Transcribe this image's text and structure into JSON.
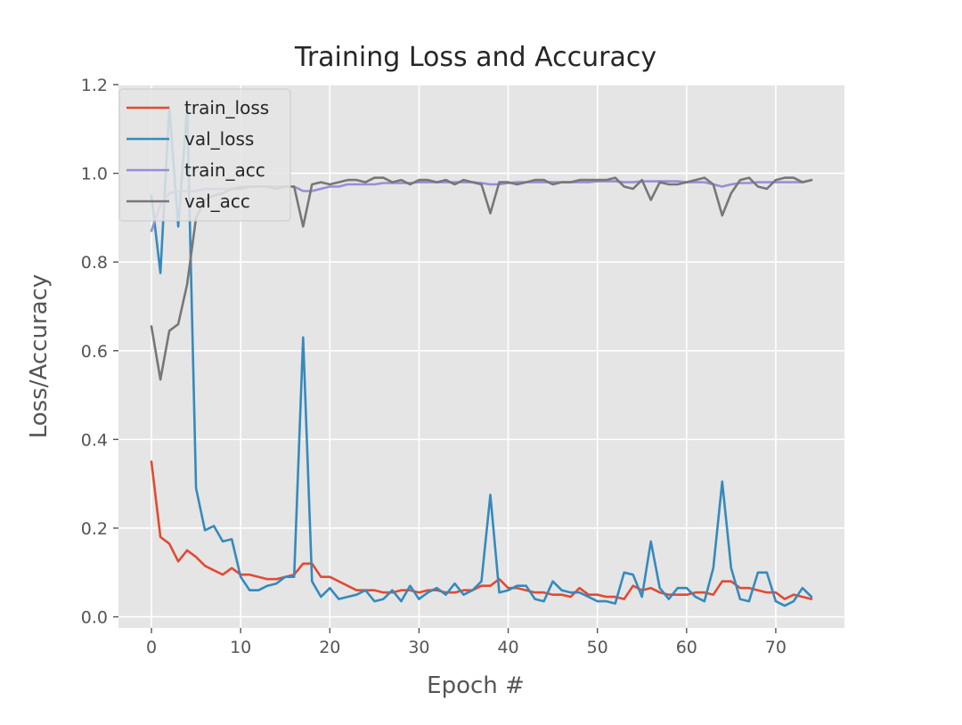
{
  "chart_data": {
    "type": "line",
    "title": "Training Loss and Accuracy",
    "xlabel": "Epoch #",
    "ylabel": "Loss/Accuracy",
    "xlim": [
      -3.7,
      77.7
    ],
    "ylim": [
      -0.025,
      1.2
    ],
    "xticks": [
      "0",
      "10",
      "20",
      "30",
      "40",
      "50",
      "60",
      "70"
    ],
    "yticks": [
      "0.0",
      "0.2",
      "0.4",
      "0.6",
      "0.8",
      "1.0",
      "1.2"
    ],
    "grid": true,
    "legend_position": "top-left",
    "x": [
      0,
      1,
      2,
      3,
      4,
      5,
      6,
      7,
      8,
      9,
      10,
      11,
      12,
      13,
      14,
      15,
      16,
      17,
      18,
      19,
      20,
      21,
      22,
      23,
      24,
      25,
      26,
      27,
      28,
      29,
      30,
      31,
      32,
      33,
      34,
      35,
      36,
      37,
      38,
      39,
      40,
      41,
      42,
      43,
      44,
      45,
      46,
      47,
      48,
      49,
      50,
      51,
      52,
      53,
      54,
      55,
      56,
      57,
      58,
      59,
      60,
      61,
      62,
      63,
      64,
      65,
      66,
      67,
      68,
      69,
      70,
      71,
      72,
      73,
      74
    ],
    "series": [
      {
        "name": "train_loss",
        "color": "#E24A33",
        "values": [
          0.35,
          0.18,
          0.165,
          0.125,
          0.15,
          0.135,
          0.115,
          0.105,
          0.095,
          0.11,
          0.095,
          0.095,
          0.09,
          0.085,
          0.085,
          0.09,
          0.095,
          0.12,
          0.12,
          0.09,
          0.09,
          0.08,
          0.07,
          0.06,
          0.06,
          0.06,
          0.055,
          0.055,
          0.06,
          0.06,
          0.055,
          0.06,
          0.06,
          0.055,
          0.055,
          0.06,
          0.06,
          0.07,
          0.07,
          0.085,
          0.065,
          0.065,
          0.06,
          0.055,
          0.055,
          0.05,
          0.05,
          0.045,
          0.065,
          0.05,
          0.05,
          0.045,
          0.045,
          0.04,
          0.07,
          0.06,
          0.065,
          0.055,
          0.05,
          0.05,
          0.05,
          0.055,
          0.055,
          0.05,
          0.08,
          0.08,
          0.065,
          0.065,
          0.06,
          0.055,
          0.055,
          0.04,
          0.05,
          0.045,
          0.04
        ]
      },
      {
        "name": "val_loss",
        "color": "#348ABD",
        "values": [
          0.95,
          0.775,
          1.15,
          0.88,
          1.15,
          0.29,
          0.195,
          0.205,
          0.17,
          0.175,
          0.09,
          0.06,
          0.06,
          0.07,
          0.075,
          0.09,
          0.09,
          0.63,
          0.08,
          0.045,
          0.065,
          0.04,
          0.045,
          0.05,
          0.06,
          0.035,
          0.04,
          0.06,
          0.035,
          0.07,
          0.04,
          0.055,
          0.065,
          0.05,
          0.075,
          0.05,
          0.06,
          0.08,
          0.275,
          0.055,
          0.06,
          0.07,
          0.07,
          0.04,
          0.035,
          0.08,
          0.06,
          0.055,
          0.055,
          0.045,
          0.035,
          0.035,
          0.03,
          0.1,
          0.095,
          0.045,
          0.17,
          0.065,
          0.04,
          0.065,
          0.065,
          0.045,
          0.035,
          0.11,
          0.305,
          0.11,
          0.04,
          0.035,
          0.1,
          0.1,
          0.035,
          0.025,
          0.035,
          0.065,
          0.045
        ]
      },
      {
        "name": "train_acc",
        "color": "#988ED5",
        "values": [
          0.87,
          0.93,
          0.955,
          0.96,
          0.96,
          0.96,
          0.965,
          0.965,
          0.965,
          0.965,
          0.97,
          0.97,
          0.97,
          0.97,
          0.97,
          0.97,
          0.97,
          0.96,
          0.96,
          0.965,
          0.97,
          0.97,
          0.975,
          0.975,
          0.975,
          0.975,
          0.978,
          0.978,
          0.978,
          0.978,
          0.98,
          0.98,
          0.98,
          0.98,
          0.98,
          0.98,
          0.98,
          0.978,
          0.975,
          0.975,
          0.978,
          0.98,
          0.98,
          0.98,
          0.98,
          0.98,
          0.98,
          0.98,
          0.98,
          0.98,
          0.982,
          0.982,
          0.982,
          0.98,
          0.98,
          0.982,
          0.982,
          0.982,
          0.982,
          0.982,
          0.98,
          0.98,
          0.98,
          0.975,
          0.97,
          0.975,
          0.978,
          0.978,
          0.98,
          0.98,
          0.98,
          0.98,
          0.98,
          0.98,
          0.985
        ]
      },
      {
        "name": "val_acc",
        "color": "#777777",
        "values": [
          0.655,
          0.535,
          0.645,
          0.66,
          0.75,
          0.9,
          0.94,
          0.95,
          0.955,
          0.965,
          0.965,
          0.97,
          0.97,
          0.97,
          0.965,
          0.97,
          0.97,
          0.88,
          0.975,
          0.98,
          0.975,
          0.98,
          0.985,
          0.985,
          0.98,
          0.99,
          0.99,
          0.98,
          0.985,
          0.975,
          0.985,
          0.985,
          0.98,
          0.985,
          0.975,
          0.985,
          0.98,
          0.975,
          0.91,
          0.98,
          0.98,
          0.975,
          0.98,
          0.985,
          0.985,
          0.975,
          0.98,
          0.98,
          0.985,
          0.985,
          0.985,
          0.985,
          0.99,
          0.97,
          0.965,
          0.985,
          0.94,
          0.98,
          0.975,
          0.975,
          0.98,
          0.985,
          0.99,
          0.975,
          0.905,
          0.955,
          0.985,
          0.99,
          0.97,
          0.965,
          0.985,
          0.99,
          0.99,
          0.98,
          0.985
        ]
      }
    ]
  }
}
